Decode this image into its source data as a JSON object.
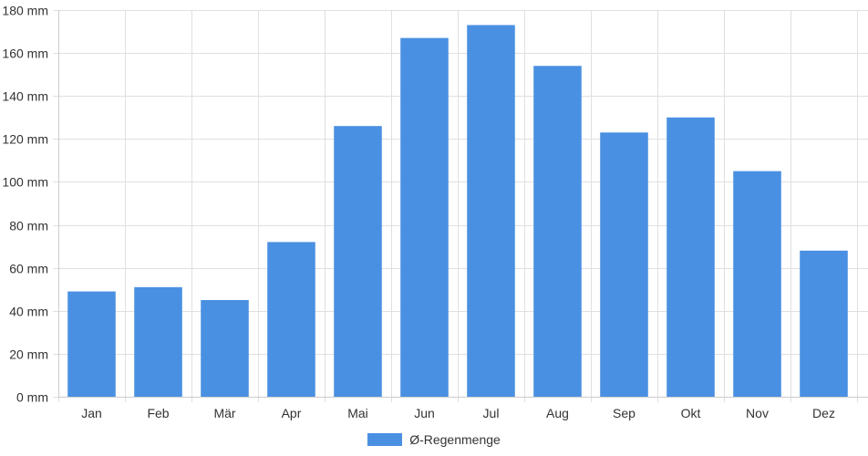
{
  "chart_data": {
    "type": "bar",
    "categories": [
      "Jan",
      "Feb",
      "Mär",
      "Apr",
      "Mai",
      "Jun",
      "Jul",
      "Aug",
      "Sep",
      "Okt",
      "Nov",
      "Dez"
    ],
    "series": [
      {
        "name": "Ø-Regenmenge",
        "color": "#4a90e2",
        "values": [
          49,
          51,
          45,
          72,
          126,
          167,
          173,
          154,
          123,
          130,
          105,
          68
        ]
      }
    ],
    "ylim": [
      0,
      180
    ],
    "yticks": [
      0,
      20,
      40,
      60,
      80,
      100,
      120,
      140,
      160,
      180
    ],
    "ytick_labels": [
      "0 mm",
      "20 mm",
      "40 mm",
      "60 mm",
      "80 mm",
      "100 mm",
      "120 mm",
      "140 mm",
      "160 mm",
      "180 mm"
    ],
    "grid": true,
    "legend_position": "bottom"
  },
  "legend": {
    "label": "Ø-Regenmenge"
  }
}
